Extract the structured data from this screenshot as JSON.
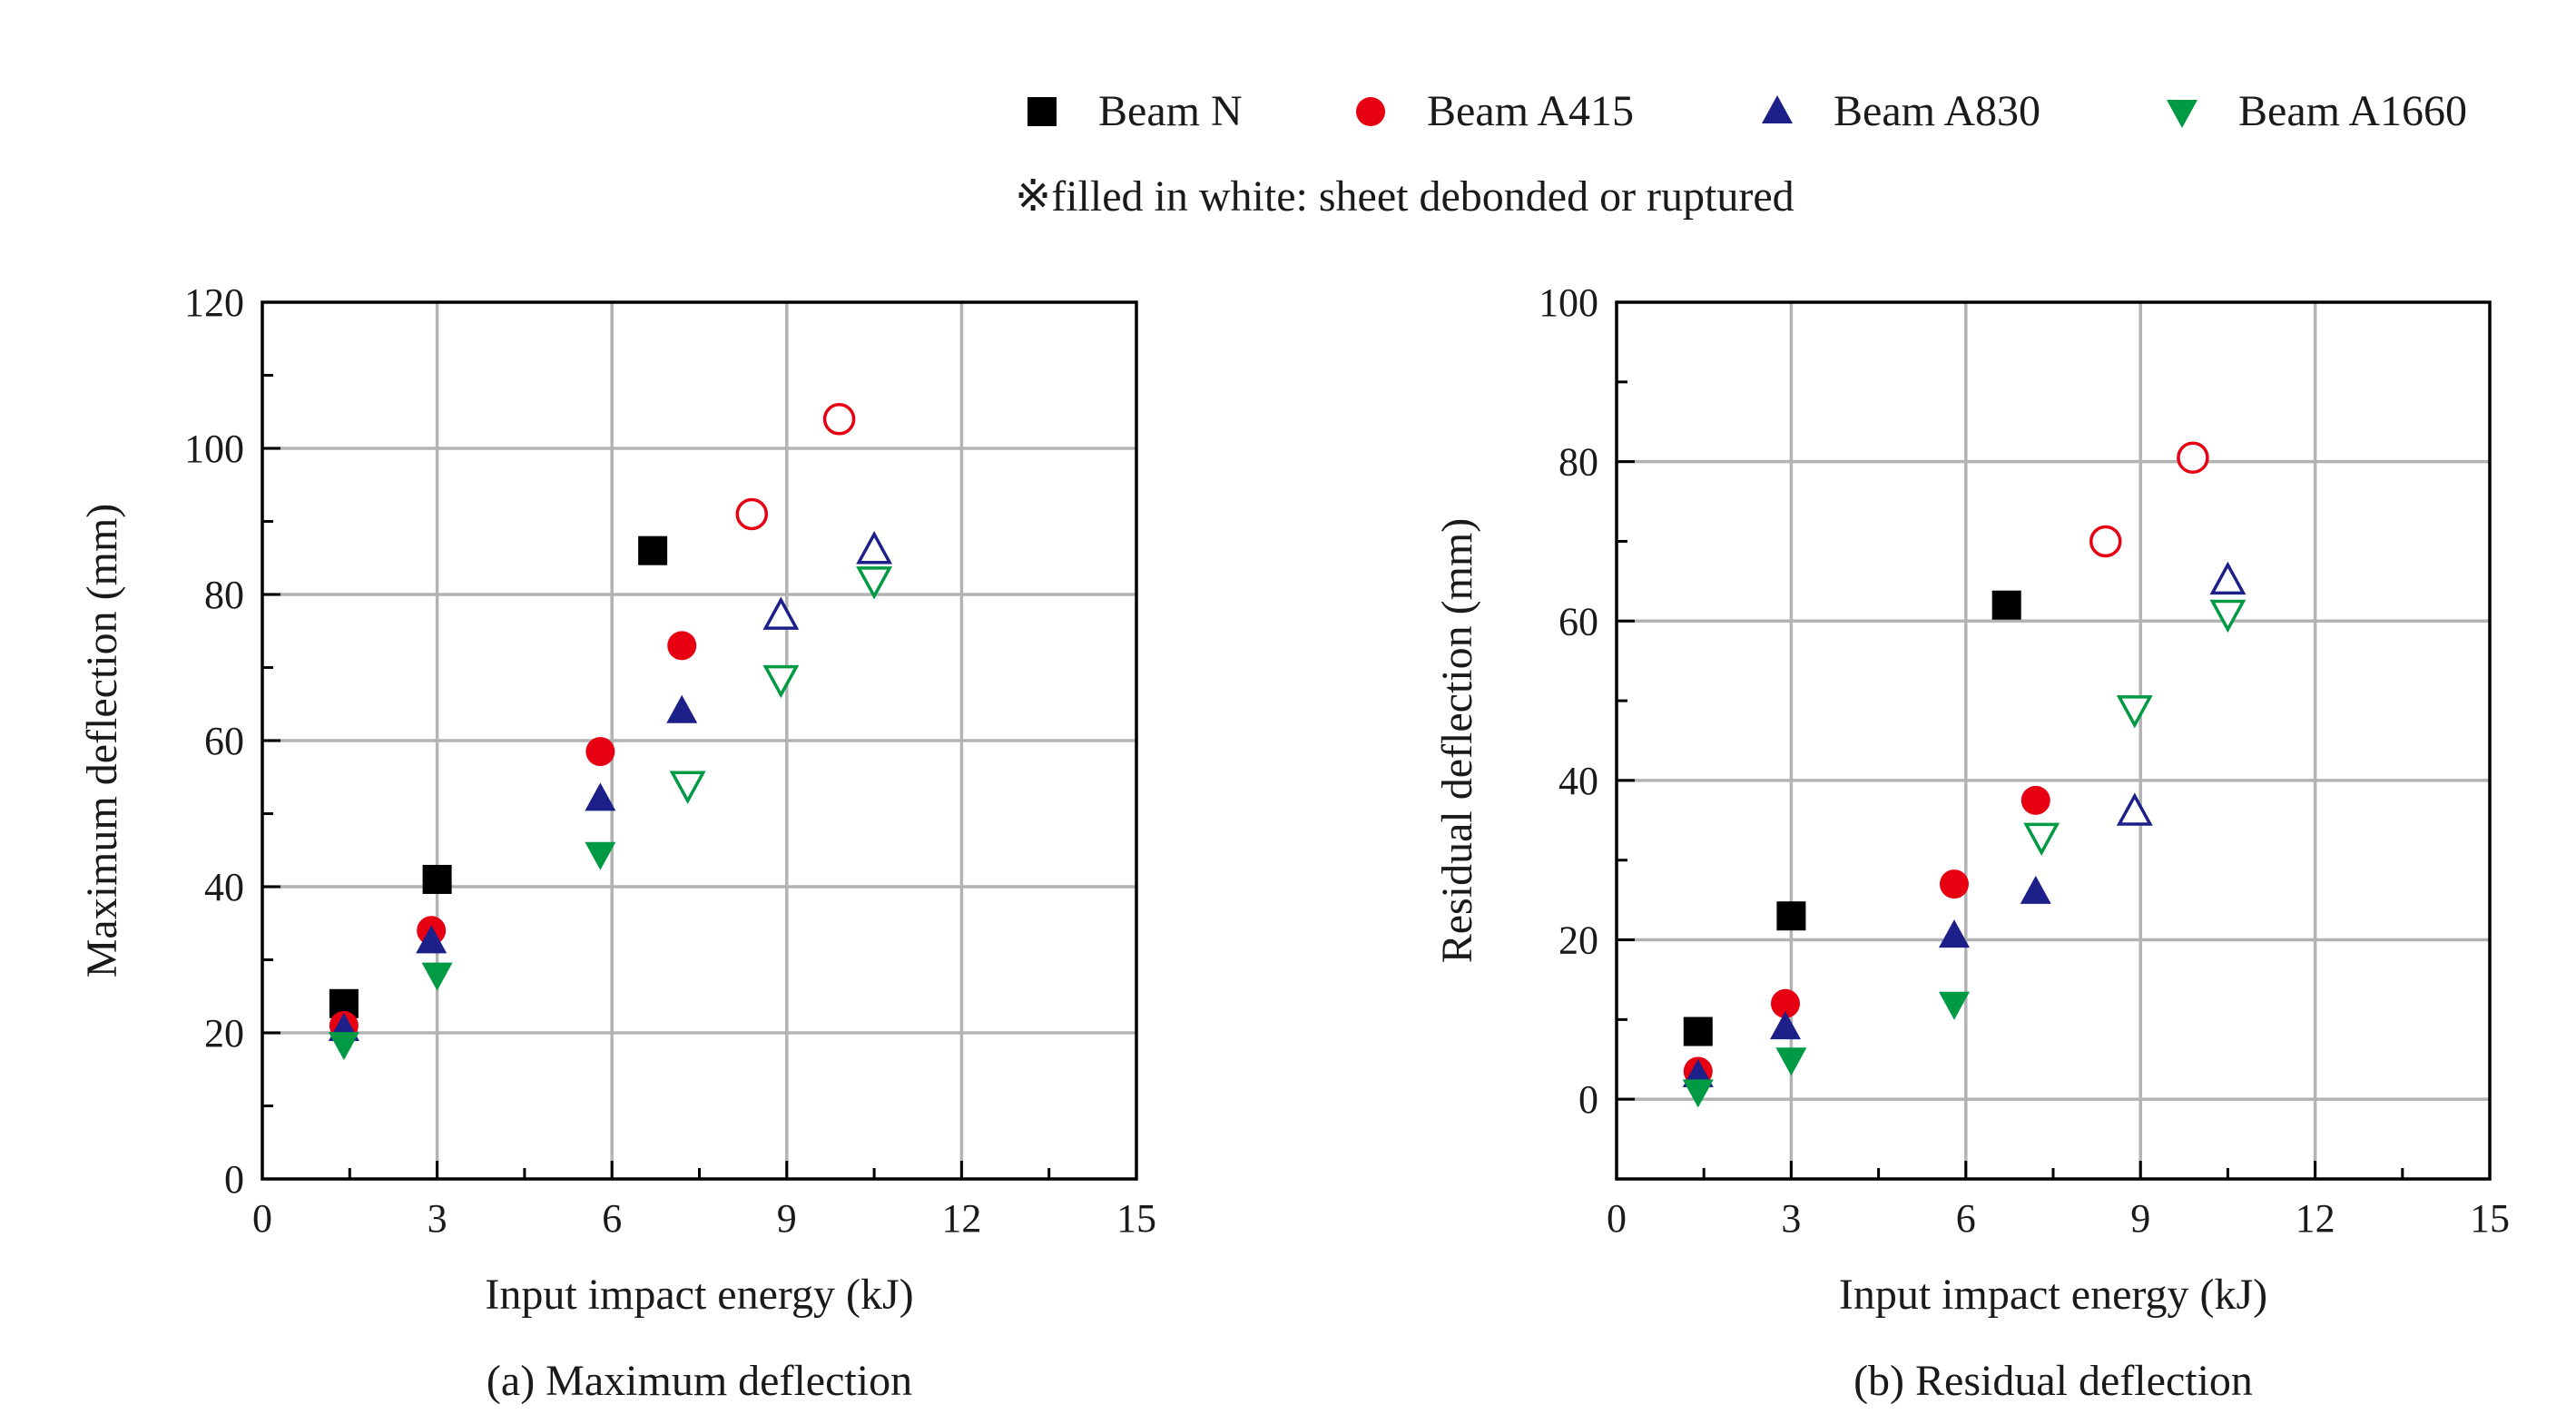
{
  "legend": {
    "items": [
      {
        "key": "N",
        "label": "Beam N",
        "marker": "square",
        "color": "#000000"
      },
      {
        "key": "A415",
        "label": "Beam A415",
        "marker": "circle",
        "color": "#e60012"
      },
      {
        "key": "A830",
        "label": "Beam A830",
        "marker": "triangle-up",
        "color": "#1d2088"
      },
      {
        "key": "A1660",
        "label": "Beam A1660",
        "marker": "triangle-down",
        "color": "#009944"
      }
    ],
    "note": "※filled in white: sheet debonded or ruptured"
  },
  "colors": {
    "grid": "#b3b3b3",
    "axis": "#000000"
  },
  "chart_data": [
    {
      "type": "scatter",
      "caption": "(a) Maximum deflection",
      "xlabel": "Input impact energy (kJ)",
      "ylabel": "Maximum deflection (mm)",
      "xlim": [
        0,
        15
      ],
      "ylim": [
        0,
        120
      ],
      "xticks": [
        0,
        3,
        6,
        9,
        12,
        15
      ],
      "yticks": [
        0,
        20,
        40,
        60,
        80,
        100,
        120
      ],
      "grid": true,
      "series": [
        {
          "name": "Beam N",
          "marker": "square",
          "color": "#000000",
          "points": [
            {
              "x": 1.4,
              "y": 24,
              "filled": true
            },
            {
              "x": 3.0,
              "y": 41,
              "filled": true
            },
            {
              "x": 6.7,
              "y": 86,
              "filled": true
            }
          ]
        },
        {
          "name": "Beam A415",
          "marker": "circle",
          "color": "#e60012",
          "points": [
            {
              "x": 1.4,
              "y": 21,
              "filled": true
            },
            {
              "x": 2.9,
              "y": 34,
              "filled": true
            },
            {
              "x": 5.8,
              "y": 58.5,
              "filled": true
            },
            {
              "x": 7.2,
              "y": 73,
              "filled": true
            },
            {
              "x": 8.4,
              "y": 91,
              "filled": false
            },
            {
              "x": 9.9,
              "y": 104,
              "filled": false
            }
          ]
        },
        {
          "name": "Beam A830",
          "marker": "triangle-up",
          "color": "#1d2088",
          "points": [
            {
              "x": 1.4,
              "y": 20.5,
              "filled": true
            },
            {
              "x": 2.9,
              "y": 32.5,
              "filled": true
            },
            {
              "x": 5.8,
              "y": 52,
              "filled": true
            },
            {
              "x": 7.2,
              "y": 64,
              "filled": true
            },
            {
              "x": 8.9,
              "y": 77,
              "filled": false
            },
            {
              "x": 10.5,
              "y": 86,
              "filled": false
            }
          ]
        },
        {
          "name": "Beam A1660",
          "marker": "triangle-down",
          "color": "#009944",
          "points": [
            {
              "x": 1.4,
              "y": 18.5,
              "filled": true
            },
            {
              "x": 3.0,
              "y": 28,
              "filled": true
            },
            {
              "x": 5.8,
              "y": 44.5,
              "filled": true
            },
            {
              "x": 7.3,
              "y": 54,
              "filled": false
            },
            {
              "x": 8.9,
              "y": 68.5,
              "filled": false
            },
            {
              "x": 10.5,
              "y": 82,
              "filled": false
            }
          ]
        }
      ]
    },
    {
      "type": "scatter",
      "caption": "(b) Residual deflection",
      "xlabel": "Input impact energy (kJ)",
      "ylabel": "Residual deflection (mm)",
      "xlim": [
        0,
        15
      ],
      "ylim": [
        -10,
        100
      ],
      "xticks": [
        0,
        3,
        6,
        9,
        12,
        15
      ],
      "yticks": [
        0,
        20,
        40,
        60,
        80,
        100
      ],
      "grid": true,
      "series": [
        {
          "name": "Beam N",
          "marker": "square",
          "color": "#000000",
          "points": [
            {
              "x": 1.4,
              "y": 8.5,
              "filled": true
            },
            {
              "x": 3.0,
              "y": 23,
              "filled": true
            },
            {
              "x": 6.7,
              "y": 62,
              "filled": true
            }
          ]
        },
        {
          "name": "Beam A415",
          "marker": "circle",
          "color": "#e60012",
          "points": [
            {
              "x": 1.4,
              "y": 3.5,
              "filled": true
            },
            {
              "x": 2.9,
              "y": 12,
              "filled": true
            },
            {
              "x": 5.8,
              "y": 27,
              "filled": true
            },
            {
              "x": 7.2,
              "y": 37.5,
              "filled": true
            },
            {
              "x": 8.4,
              "y": 70,
              "filled": false
            },
            {
              "x": 9.9,
              "y": 80.5,
              "filled": false
            }
          ]
        },
        {
          "name": "Beam A830",
          "marker": "triangle-up",
          "color": "#1d2088",
          "points": [
            {
              "x": 1.4,
              "y": 3,
              "filled": true
            },
            {
              "x": 2.9,
              "y": 9,
              "filled": true
            },
            {
              "x": 5.8,
              "y": 20.5,
              "filled": true
            },
            {
              "x": 7.2,
              "y": 26,
              "filled": true
            },
            {
              "x": 8.9,
              "y": 36,
              "filled": false
            },
            {
              "x": 10.5,
              "y": 65,
              "filled": false
            }
          ]
        },
        {
          "name": "Beam A1660",
          "marker": "triangle-down",
          "color": "#009944",
          "points": [
            {
              "x": 1.4,
              "y": 1,
              "filled": true
            },
            {
              "x": 3.0,
              "y": 5,
              "filled": true
            },
            {
              "x": 5.8,
              "y": 12,
              "filled": true
            },
            {
              "x": 7.3,
              "y": 33,
              "filled": false
            },
            {
              "x": 8.9,
              "y": 49,
              "filled": false
            },
            {
              "x": 10.5,
              "y": 61,
              "filled": false
            }
          ]
        }
      ]
    }
  ]
}
